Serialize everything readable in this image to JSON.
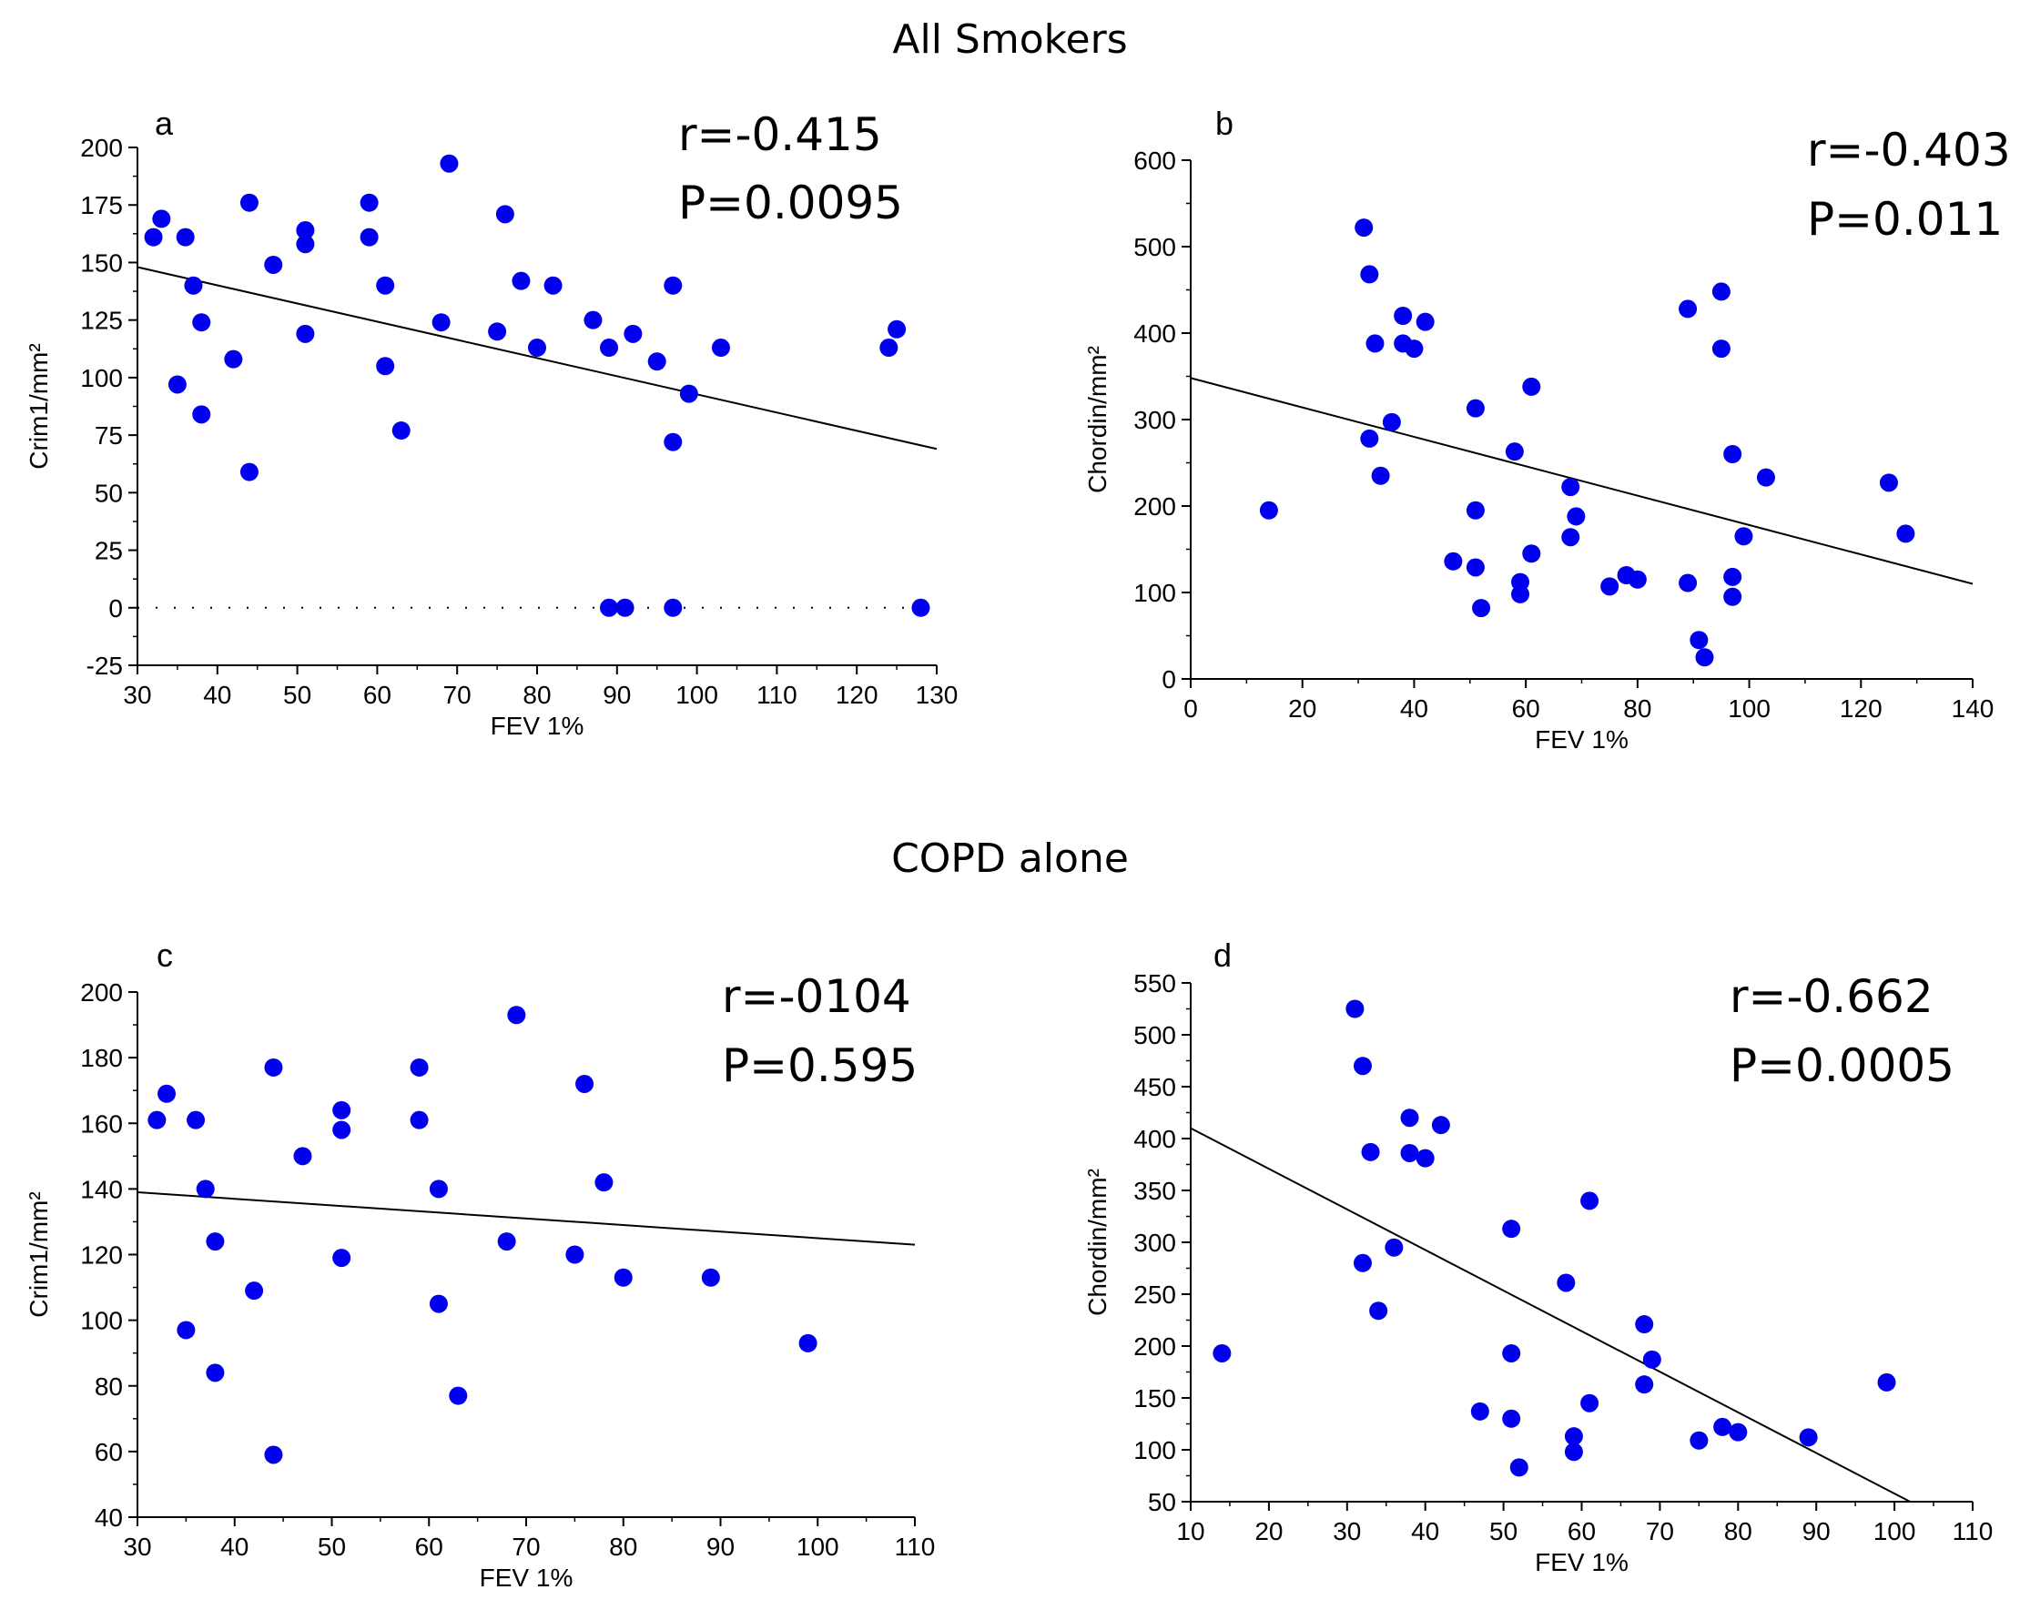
{
  "section_titles": {
    "top": "All Smokers",
    "bottom": "COPD alone"
  },
  "colors": {
    "points": "#0000ee",
    "line": "#000000"
  },
  "chart_data": [
    {
      "id": "a",
      "type": "scatter",
      "panel_label": "a",
      "r_text": "r=-0.415",
      "p_text": "P=0.0095",
      "xlabel": "FEV 1%",
      "ylabel": "Crim1/mm²",
      "xlim": [
        30,
        130
      ],
      "ylim": [
        -25,
        200
      ],
      "xticks": [
        30,
        40,
        50,
        60,
        70,
        80,
        90,
        100,
        110,
        120,
        130
      ],
      "yticks": [
        -25,
        0,
        25,
        50,
        75,
        100,
        125,
        150,
        175,
        200
      ],
      "zero_line": true,
      "fit_line": {
        "x": [
          30,
          130
        ],
        "y": [
          148,
          69
        ]
      },
      "points": [
        [
          32,
          161
        ],
        [
          33,
          169
        ],
        [
          35,
          97
        ],
        [
          36,
          161
        ],
        [
          37,
          140
        ],
        [
          38,
          124
        ],
        [
          38,
          84
        ],
        [
          42,
          108
        ],
        [
          44,
          176
        ],
        [
          44,
          59
        ],
        [
          47,
          149
        ],
        [
          51,
          164
        ],
        [
          51,
          158
        ],
        [
          51,
          119
        ],
        [
          59,
          176
        ],
        [
          59,
          161
        ],
        [
          61,
          140
        ],
        [
          61,
          105
        ],
        [
          63,
          77
        ],
        [
          68,
          124
        ],
        [
          69,
          193
        ],
        [
          75,
          120
        ],
        [
          76,
          171
        ],
        [
          78,
          142
        ],
        [
          80,
          113
        ],
        [
          82,
          140
        ],
        [
          87,
          125
        ],
        [
          89,
          113
        ],
        [
          92,
          119
        ],
        [
          95,
          107
        ],
        [
          97,
          140
        ],
        [
          97,
          72
        ],
        [
          99,
          93
        ],
        [
          103,
          113
        ],
        [
          124,
          113
        ],
        [
          125,
          121
        ],
        [
          89,
          0
        ],
        [
          91,
          0
        ],
        [
          97,
          0
        ],
        [
          128,
          0
        ]
      ]
    },
    {
      "id": "b",
      "type": "scatter",
      "panel_label": "b",
      "r_text": "r=-0.403",
      "p_text": "P=0.011",
      "xlabel": "FEV 1%",
      "ylabel": "Chordin/mm²",
      "xlim": [
        0,
        140
      ],
      "ylim": [
        0,
        600
      ],
      "xticks": [
        0,
        20,
        40,
        60,
        80,
        100,
        120,
        140
      ],
      "yticks": [
        0,
        100,
        200,
        300,
        400,
        500,
        600
      ],
      "zero_line": false,
      "fit_line": {
        "x": [
          0,
          140
        ],
        "y": [
          348,
          110
        ]
      },
      "points": [
        [
          14,
          195
        ],
        [
          31,
          522
        ],
        [
          32,
          468
        ],
        [
          32,
          278
        ],
        [
          33,
          388
        ],
        [
          34,
          235
        ],
        [
          36,
          297
        ],
        [
          38,
          420
        ],
        [
          38,
          388
        ],
        [
          40,
          382
        ],
        [
          42,
          413
        ],
        [
          47,
          136
        ],
        [
          51,
          313
        ],
        [
          51,
          195
        ],
        [
          51,
          129
        ],
        [
          52,
          82
        ],
        [
          58,
          263
        ],
        [
          59,
          112
        ],
        [
          59,
          98
        ],
        [
          61,
          338
        ],
        [
          61,
          145
        ],
        [
          68,
          222
        ],
        [
          68,
          164
        ],
        [
          69,
          188
        ],
        [
          75,
          107
        ],
        [
          78,
          120
        ],
        [
          80,
          115
        ],
        [
          89,
          428
        ],
        [
          89,
          111
        ],
        [
          91,
          45
        ],
        [
          92,
          25
        ],
        [
          95,
          448
        ],
        [
          95,
          382
        ],
        [
          97,
          260
        ],
        [
          97,
          118
        ],
        [
          97,
          95
        ],
        [
          99,
          165
        ],
        [
          103,
          233
        ],
        [
          125,
          227
        ],
        [
          128,
          168
        ]
      ]
    },
    {
      "id": "c",
      "type": "scatter",
      "panel_label": "c",
      "r_text": "r=-0104",
      "p_text": "P=0.595",
      "xlabel": "FEV 1%",
      "ylabel": "Crim1/mm²",
      "xlim": [
        30,
        110
      ],
      "ylim": [
        40,
        200
      ],
      "xticks": [
        30,
        40,
        50,
        60,
        70,
        80,
        90,
        100,
        110
      ],
      "yticks": [
        40,
        60,
        80,
        100,
        120,
        140,
        160,
        180,
        200
      ],
      "zero_line": false,
      "fit_line": {
        "x": [
          30,
          110
        ],
        "y": [
          139,
          123
        ]
      },
      "points": [
        [
          32,
          161
        ],
        [
          33,
          169
        ],
        [
          35,
          97
        ],
        [
          36,
          161
        ],
        [
          37,
          140
        ],
        [
          38,
          124
        ],
        [
          38,
          84
        ],
        [
          42,
          109
        ],
        [
          44,
          177
        ],
        [
          44,
          59
        ],
        [
          47,
          150
        ],
        [
          51,
          164
        ],
        [
          51,
          158
        ],
        [
          51,
          119
        ],
        [
          59,
          177
        ],
        [
          59,
          161
        ],
        [
          61,
          140
        ],
        [
          61,
          105
        ],
        [
          63,
          77
        ],
        [
          68,
          124
        ],
        [
          69,
          193
        ],
        [
          75,
          120
        ],
        [
          76,
          172
        ],
        [
          78,
          142
        ],
        [
          80,
          113
        ],
        [
          89,
          113
        ],
        [
          99,
          93
        ]
      ]
    },
    {
      "id": "d",
      "type": "scatter",
      "panel_label": "d",
      "r_text": "r=-0.662",
      "p_text": "P=0.0005",
      "xlabel": "FEV 1%",
      "ylabel": "Chordin/mm²",
      "xlim": [
        10,
        110
      ],
      "ylim": [
        50,
        550
      ],
      "xticks": [
        10,
        20,
        30,
        40,
        50,
        60,
        70,
        80,
        90,
        100,
        110
      ],
      "yticks": [
        50,
        100,
        150,
        200,
        250,
        300,
        350,
        400,
        450,
        500,
        550
      ],
      "zero_line": false,
      "fit_line": {
        "x": [
          10,
          102
        ],
        "y": [
          410,
          50
        ]
      },
      "points": [
        [
          14,
          193
        ],
        [
          31,
          525
        ],
        [
          32,
          470
        ],
        [
          32,
          280
        ],
        [
          33,
          387
        ],
        [
          34,
          234
        ],
        [
          36,
          295
        ],
        [
          38,
          420
        ],
        [
          38,
          386
        ],
        [
          40,
          381
        ],
        [
          42,
          413
        ],
        [
          47,
          137
        ],
        [
          51,
          313
        ],
        [
          51,
          193
        ],
        [
          51,
          130
        ],
        [
          52,
          83
        ],
        [
          58,
          261
        ],
        [
          59,
          113
        ],
        [
          59,
          98
        ],
        [
          61,
          340
        ],
        [
          61,
          145
        ],
        [
          68,
          221
        ],
        [
          68,
          163
        ],
        [
          69,
          187
        ],
        [
          75,
          109
        ],
        [
          78,
          122
        ],
        [
          80,
          117
        ],
        [
          89,
          112
        ],
        [
          99,
          165
        ]
      ]
    }
  ]
}
